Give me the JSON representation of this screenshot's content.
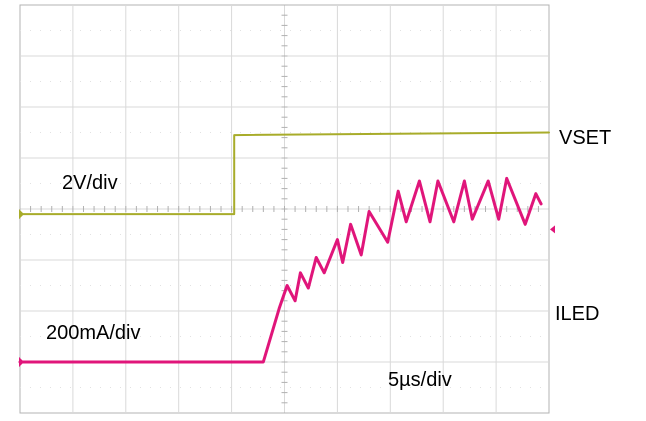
{
  "chart_data": {
    "type": "line",
    "title": "",
    "xlabel": "",
    "ylabel": "",
    "grid": true,
    "grid_divisions": {
      "x": 10,
      "y": 8
    },
    "xlim": [
      0,
      10
    ],
    "ylim": [
      0,
      8
    ],
    "labels": {
      "vset_scale": "2V/div",
      "iled_scale": "200mA/div",
      "time_scale": "5µs/div",
      "vset_name": "VSET",
      "iled_name": "ILED"
    },
    "series": [
      {
        "name": "VSET",
        "color": "#a8ac2a",
        "units": "div",
        "x": [
          0,
          4.05,
          4.05,
          10
        ],
        "y": [
          3.9,
          3.9,
          5.45,
          5.5
        ]
      },
      {
        "name": "ILED",
        "color": "#e0157a",
        "units": "div",
        "x": [
          0,
          4.6,
          4.9,
          5.05,
          5.2,
          5.3,
          5.45,
          5.6,
          5.75,
          6.0,
          6.1,
          6.25,
          6.45,
          6.6,
          6.95,
          7.15,
          7.3,
          7.55,
          7.75,
          7.9,
          8.2,
          8.4,
          8.55,
          8.85,
          9.05,
          9.2,
          9.55,
          9.75,
          9.85
        ],
        "y": [
          1.0,
          1.0,
          2.05,
          2.5,
          2.2,
          2.75,
          2.45,
          3.05,
          2.75,
          3.4,
          2.95,
          3.7,
          3.1,
          3.95,
          3.35,
          4.35,
          3.75,
          4.55,
          3.75,
          4.55,
          3.75,
          4.55,
          3.8,
          4.55,
          3.8,
          4.6,
          3.7,
          4.3,
          4.1
        ]
      }
    ]
  }
}
